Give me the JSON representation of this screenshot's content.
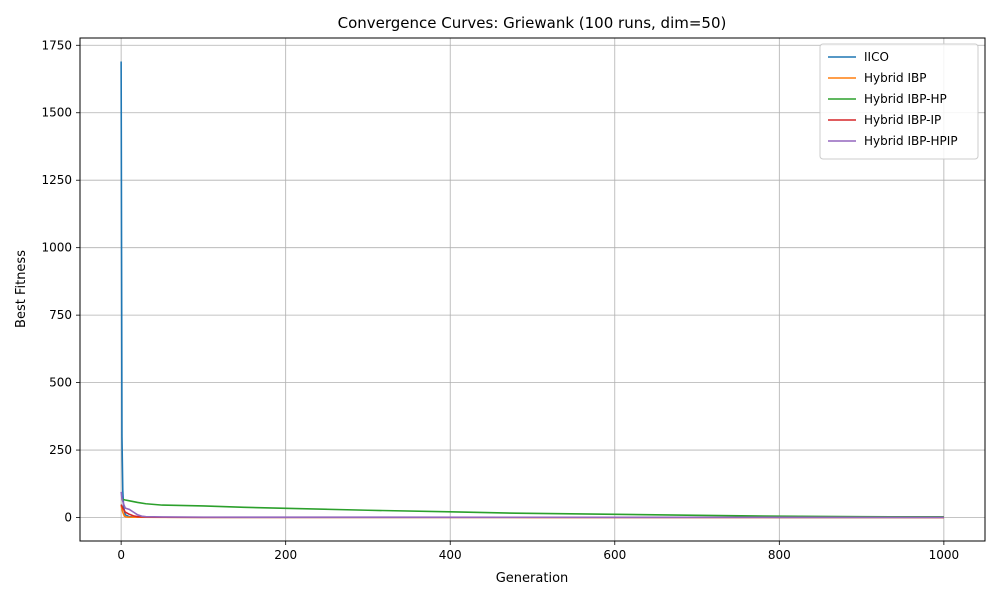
{
  "chart_data": {
    "type": "line",
    "title": "Convergence Curves: Griewank (100 runs, dim=50)",
    "xlabel": "Generation",
    "ylabel": "Best Fitness",
    "xlim": [
      -50,
      1050
    ],
    "ylim": [
      -87,
      1777
    ],
    "xticks": [
      0,
      200,
      400,
      600,
      800,
      1000
    ],
    "yticks": [
      0,
      250,
      500,
      750,
      1000,
      1250,
      1500,
      1750
    ],
    "xtick_labels": [
      "0",
      "200",
      "400",
      "600",
      "800",
      "1000"
    ],
    "ytick_labels": [
      "0",
      "250",
      "500",
      "750",
      "1000",
      "1250",
      "1500",
      "1750"
    ],
    "grid": true,
    "legend_position": "top-right",
    "series": [
      {
        "name": "IICO",
        "color": "#1f77b4",
        "x": [
          0,
          1,
          2,
          3,
          5,
          10,
          20,
          50,
          100,
          200,
          400,
          600,
          800,
          1000
        ],
        "y": [
          1690,
          300,
          100,
          40,
          10,
          3,
          1.5,
          1.0,
          0.9,
          0.8,
          0.7,
          0.6,
          0.5,
          0.5
        ]
      },
      {
        "name": "Hybrid IBP",
        "color": "#ff7f0e",
        "x": [
          0,
          2,
          4,
          6,
          10,
          20,
          50,
          100,
          500,
          1000
        ],
        "y": [
          45,
          20,
          5,
          2,
          1.2,
          1.0,
          0.8,
          0.7,
          0.5,
          0.4
        ]
      },
      {
        "name": "Hybrid IBP-HP",
        "color": "#2ca02c",
        "x": [
          1,
          5,
          10,
          20,
          30,
          50,
          100,
          150,
          200,
          300,
          400,
          480,
          600,
          700,
          800,
          900,
          1000
        ],
        "y": [
          68,
          65,
          62,
          56,
          51,
          46,
          43,
          38,
          34,
          27,
          21,
          16,
          12,
          8,
          5,
          3,
          2.5
        ]
      },
      {
        "name": "Hybrid IBP-IP",
        "color": "#d62728",
        "x": [
          0,
          2,
          5,
          10,
          15,
          20,
          30,
          50,
          100,
          500,
          1000
        ],
        "y": [
          48,
          35,
          20,
          12,
          6,
          3,
          1.5,
          1.0,
          0.8,
          0.6,
          0.5
        ]
      },
      {
        "name": "Hybrid IBP-HPIP",
        "color": "#9467bd",
        "x": [
          0,
          1,
          3,
          5,
          10,
          15,
          20,
          25,
          30,
          50,
          100,
          300,
          500,
          800,
          1000
        ],
        "y": [
          95,
          70,
          50,
          35,
          30,
          20,
          10,
          5,
          3,
          2,
          1.5,
          1.2,
          1.0,
          0.8,
          0.7
        ]
      }
    ]
  }
}
